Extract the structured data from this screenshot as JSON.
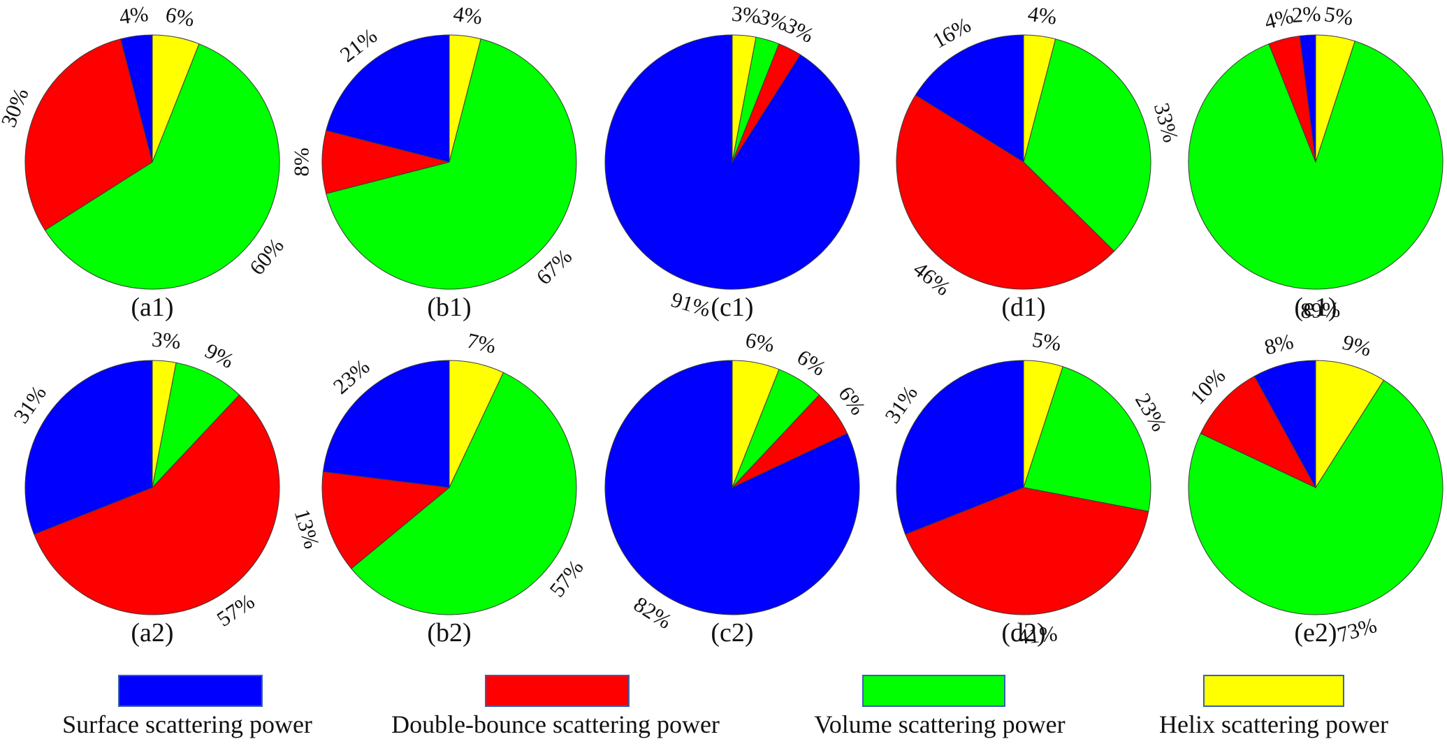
{
  "chart_data": {
    "type": "pie",
    "colors": {
      "surface": "#0000ff",
      "double_bounce": "#ff0000",
      "volume": "#00ff00",
      "helix": "#ffff00"
    },
    "legend": {
      "position": "bottom",
      "entries": [
        {
          "key": "surface",
          "label": "Surface scattering power"
        },
        {
          "key": "double_bounce",
          "label": "Double-bounce scattering power"
        },
        {
          "key": "volume",
          "label": "Volume scattering power"
        },
        {
          "key": "helix",
          "label": "Helix  scattering power"
        }
      ]
    },
    "pies": [
      {
        "panel": "(a1)",
        "slices": [
          {
            "component": "helix",
            "value": 6,
            "label": "6%"
          },
          {
            "component": "volume",
            "value": 60,
            "label": "60%"
          },
          {
            "component": "double_bounce",
            "value": 30,
            "label": "30%"
          },
          {
            "component": "surface",
            "value": 4,
            "label": "4%"
          }
        ]
      },
      {
        "panel": "(b1)",
        "slices": [
          {
            "component": "helix",
            "value": 4,
            "label": "4%"
          },
          {
            "component": "volume",
            "value": 67,
            "label": "67%"
          },
          {
            "component": "double_bounce",
            "value": 8,
            "label": "8%"
          },
          {
            "component": "surface",
            "value": 21,
            "label": "21%"
          }
        ]
      },
      {
        "panel": "(c1)",
        "slices": [
          {
            "component": "helix",
            "value": 3,
            "label": "3%"
          },
          {
            "component": "volume",
            "value": 3,
            "label": "3%"
          },
          {
            "component": "double_bounce",
            "value": 3,
            "label": "3%"
          },
          {
            "component": "surface",
            "value": 91,
            "label": "91%"
          }
        ]
      },
      {
        "panel": "(d1)",
        "slices": [
          {
            "component": "helix",
            "value": 4,
            "label": "4%"
          },
          {
            "component": "volume",
            "value": 33,
            "label": "33%"
          },
          {
            "component": "double_bounce",
            "value": 46,
            "label": "46%"
          },
          {
            "component": "surface",
            "value": 16,
            "label": "16%"
          }
        ]
      },
      {
        "panel": "(e1)",
        "slices": [
          {
            "component": "helix",
            "value": 5,
            "label": "5%"
          },
          {
            "component": "volume",
            "value": 89,
            "label": "89%"
          },
          {
            "component": "double_bounce",
            "value": 4,
            "label": "4%"
          },
          {
            "component": "surface",
            "value": 2,
            "label": "2%"
          }
        ]
      },
      {
        "panel": "(a2)",
        "slices": [
          {
            "component": "helix",
            "value": 3,
            "label": "3%"
          },
          {
            "component": "volume",
            "value": 9,
            "label": "9%"
          },
          {
            "component": "double_bounce",
            "value": 57,
            "label": "57%"
          },
          {
            "component": "surface",
            "value": 31,
            "label": "31%"
          }
        ]
      },
      {
        "panel": "(b2)",
        "slices": [
          {
            "component": "helix",
            "value": 7,
            "label": "7%"
          },
          {
            "component": "volume",
            "value": 57,
            "label": "57%"
          },
          {
            "component": "double_bounce",
            "value": 13,
            "label": "13%"
          },
          {
            "component": "surface",
            "value": 23,
            "label": "23%"
          }
        ]
      },
      {
        "panel": "(c2)",
        "slices": [
          {
            "component": "helix",
            "value": 6,
            "label": "6%"
          },
          {
            "component": "volume",
            "value": 6,
            "label": "6%"
          },
          {
            "component": "double_bounce",
            "value": 6,
            "label": "6%"
          },
          {
            "component": "surface",
            "value": 82,
            "label": "82%"
          }
        ]
      },
      {
        "panel": "(d2)",
        "slices": [
          {
            "component": "helix",
            "value": 5,
            "label": "5%"
          },
          {
            "component": "volume",
            "value": 23,
            "label": "23%"
          },
          {
            "component": "double_bounce",
            "value": 41,
            "label": "41%"
          },
          {
            "component": "surface",
            "value": 31,
            "label": "31%"
          }
        ]
      },
      {
        "panel": "(e2)",
        "slices": [
          {
            "component": "helix",
            "value": 9,
            "label": "9%"
          },
          {
            "component": "volume",
            "value": 73,
            "label": "73%"
          },
          {
            "component": "double_bounce",
            "value": 10,
            "label": "10%"
          },
          {
            "component": "surface",
            "value": 8,
            "label": "8%"
          }
        ]
      }
    ]
  }
}
